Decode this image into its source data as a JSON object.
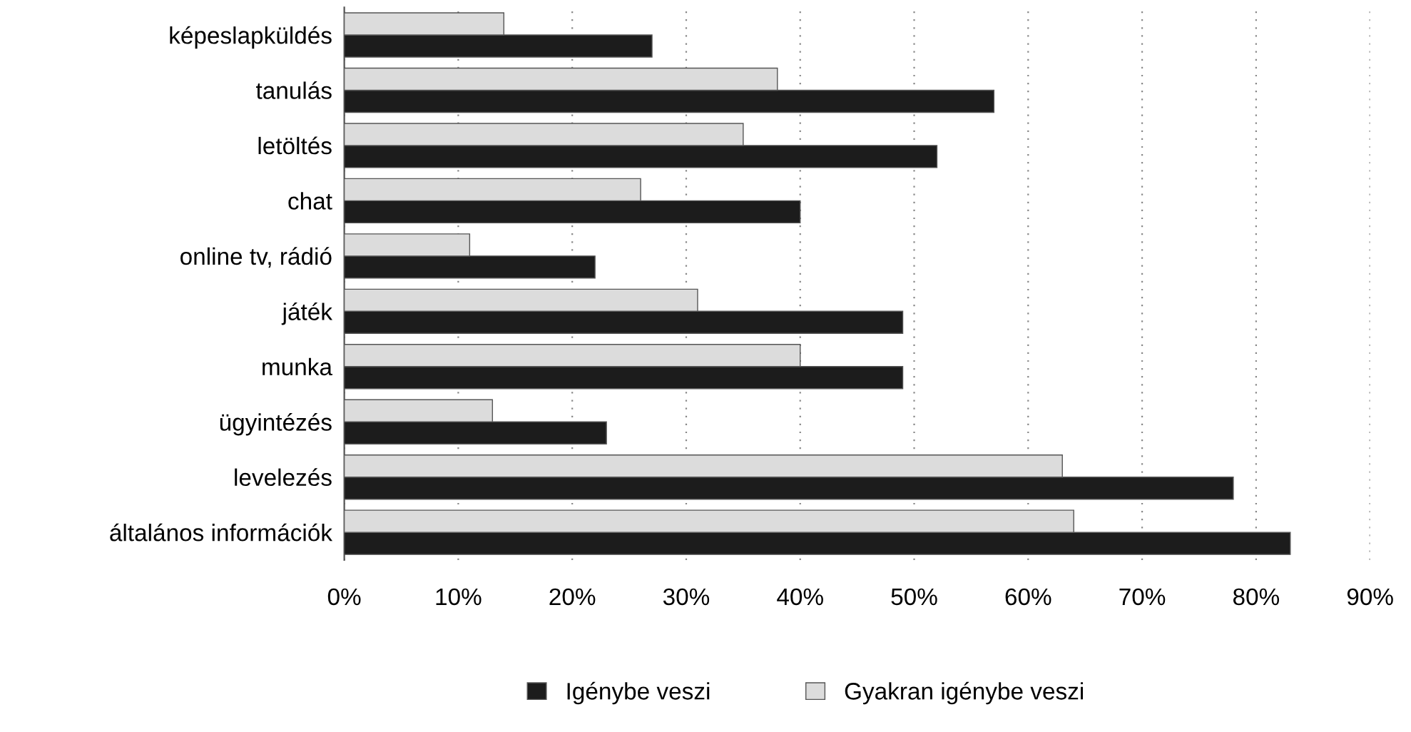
{
  "chart_data": {
    "type": "bar",
    "orientation": "horizontal",
    "categories": [
      "képeslapküldés",
      "tanulás",
      "letöltés",
      "chat",
      "online tv, rádió",
      "játék",
      "munka",
      "ügyintézés",
      "levelezés",
      "általános információk"
    ],
    "series": [
      {
        "name": "Igénybe veszi",
        "color": "#1c1c1c",
        "values": [
          27,
          57,
          52,
          40,
          22,
          49,
          49,
          23,
          78,
          83
        ]
      },
      {
        "name": "Gyakran igénybe veszi",
        "color": "#dcdcdc",
        "values": [
          14,
          38,
          35,
          26,
          11,
          31,
          40,
          13,
          63,
          64
        ]
      }
    ],
    "xlim": [
      0,
      90
    ],
    "xticks": [
      {
        "value": 0,
        "label": "0%"
      },
      {
        "value": 10,
        "label": "10%"
      },
      {
        "value": 20,
        "label": "20%"
      },
      {
        "value": 30,
        "label": "30%"
      },
      {
        "value": 40,
        "label": "40%"
      },
      {
        "value": 50,
        "label": "50%"
      },
      {
        "value": 60,
        "label": "60%"
      },
      {
        "value": 70,
        "label": "70%"
      },
      {
        "value": 80,
        "label": "80%"
      },
      {
        "value": 90,
        "label": "90%"
      }
    ],
    "grid": "x",
    "legend": "bottom"
  }
}
